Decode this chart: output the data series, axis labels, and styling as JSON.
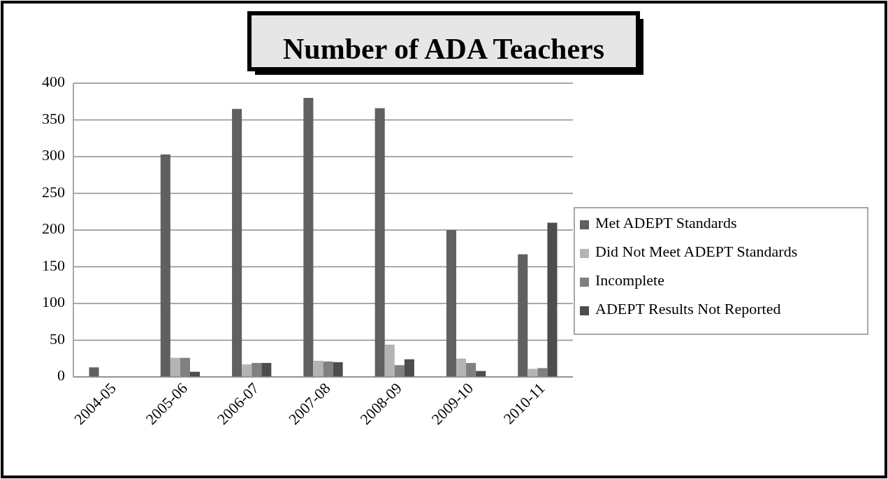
{
  "chart_data": {
    "type": "bar",
    "title": "Number of ADA Teachers",
    "categories": [
      "2004-05",
      "2005-06",
      "2006-07",
      "2007-08",
      "2008-09",
      "2009-10",
      "2010-11"
    ],
    "series": [
      {
        "name": "Met ADEPT Standards",
        "color": "#606060",
        "values": [
          13,
          303,
          365,
          380,
          366,
          200,
          167
        ]
      },
      {
        "name": "Did Not Meet ADEPT Standards",
        "color": "#b4b4b4",
        "values": [
          0,
          26,
          17,
          22,
          44,
          25,
          11
        ]
      },
      {
        "name": "Incomplete",
        "color": "#808080",
        "values": [
          0,
          26,
          19,
          21,
          16,
          19,
          12
        ]
      },
      {
        "name": "ADEPT Results Not Reported",
        "color": "#4d4d4d",
        "values": [
          0,
          7,
          19,
          20,
          24,
          8,
          210
        ]
      }
    ],
    "ylim": [
      0,
      400
    ],
    "yticks": [
      0,
      50,
      100,
      150,
      200,
      250,
      300,
      350,
      400
    ],
    "grid": "y",
    "legend": "right"
  }
}
